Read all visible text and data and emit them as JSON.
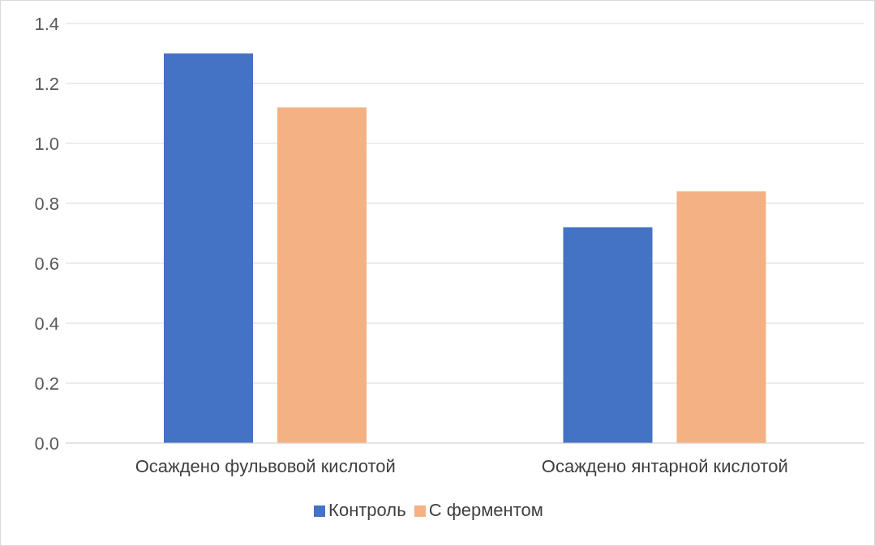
{
  "chart_data": {
    "type": "bar",
    "categories": [
      "Осаждено фульвовой кислотой",
      "Осаждено янтарной кислотой"
    ],
    "series": [
      {
        "name": "Контроль",
        "color": "#4472c4",
        "values": [
          1.3,
          0.72
        ]
      },
      {
        "name": "С ферментом",
        "color": "#f4b183",
        "values": [
          1.12,
          0.84
        ]
      }
    ],
    "ylim": [
      0,
      1.4
    ],
    "yticks": [
      {
        "value": 0,
        "label": "0.0"
      },
      {
        "value": 0.2,
        "label": "0.2"
      },
      {
        "value": 0.4,
        "label": "0.4"
      },
      {
        "value": 0.6,
        "label": "0.6"
      },
      {
        "value": 0.8,
        "label": "0.8"
      },
      {
        "value": 1,
        "label": "1.0"
      },
      {
        "value": 1.2,
        "label": "1.2"
      },
      {
        "value": 1.4,
        "label": "1.4"
      }
    ],
    "grid": "y",
    "legend": "bottom"
  }
}
